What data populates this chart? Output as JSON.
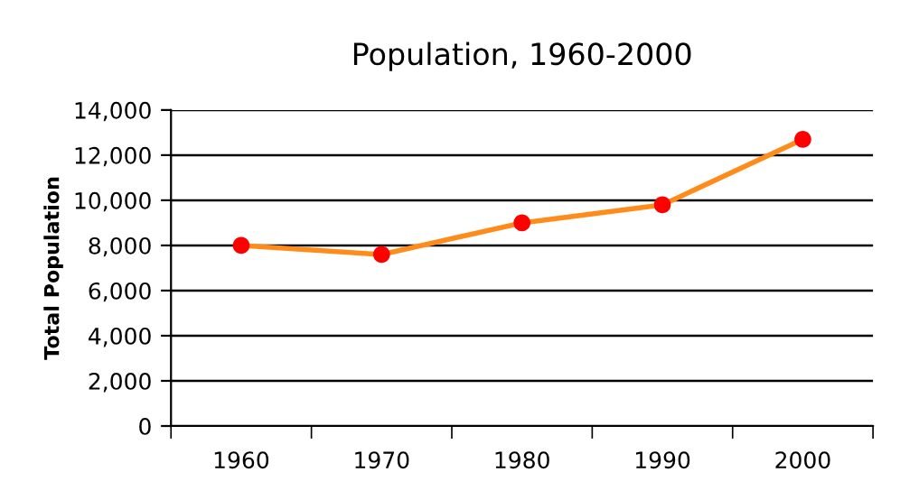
{
  "chart_data": {
    "type": "line",
    "title": "Population, 1960-2000",
    "ylabel": "Total Population",
    "categories": [
      "1960",
      "1970",
      "1980",
      "1990",
      "2000"
    ],
    "series": [
      {
        "color": "#ff8c1a",
        "colors": [
          "#ff0000",
          "#ff0000",
          "#ff0000",
          "#ff0000",
          "#ff0000"
        ],
        "values": [
          8000,
          7600,
          9000,
          9800,
          12700
        ]
      }
    ],
    "ylim": [
      0,
      14000
    ],
    "yticks": [
      {
        "value": 0,
        "label": "0"
      },
      {
        "value": 2000,
        "label": "2,000"
      },
      {
        "value": 4000,
        "label": "4,000"
      },
      {
        "value": 6000,
        "label": "6,000"
      },
      {
        "value": 8000,
        "label": "8,000"
      },
      {
        "value": 10000,
        "label": "10,000"
      },
      {
        "value": 12000,
        "label": "12,000"
      },
      {
        "value": 14000,
        "label": "14,000"
      }
    ],
    "grid": "y",
    "marker": "circle",
    "line_style": "solid"
  }
}
